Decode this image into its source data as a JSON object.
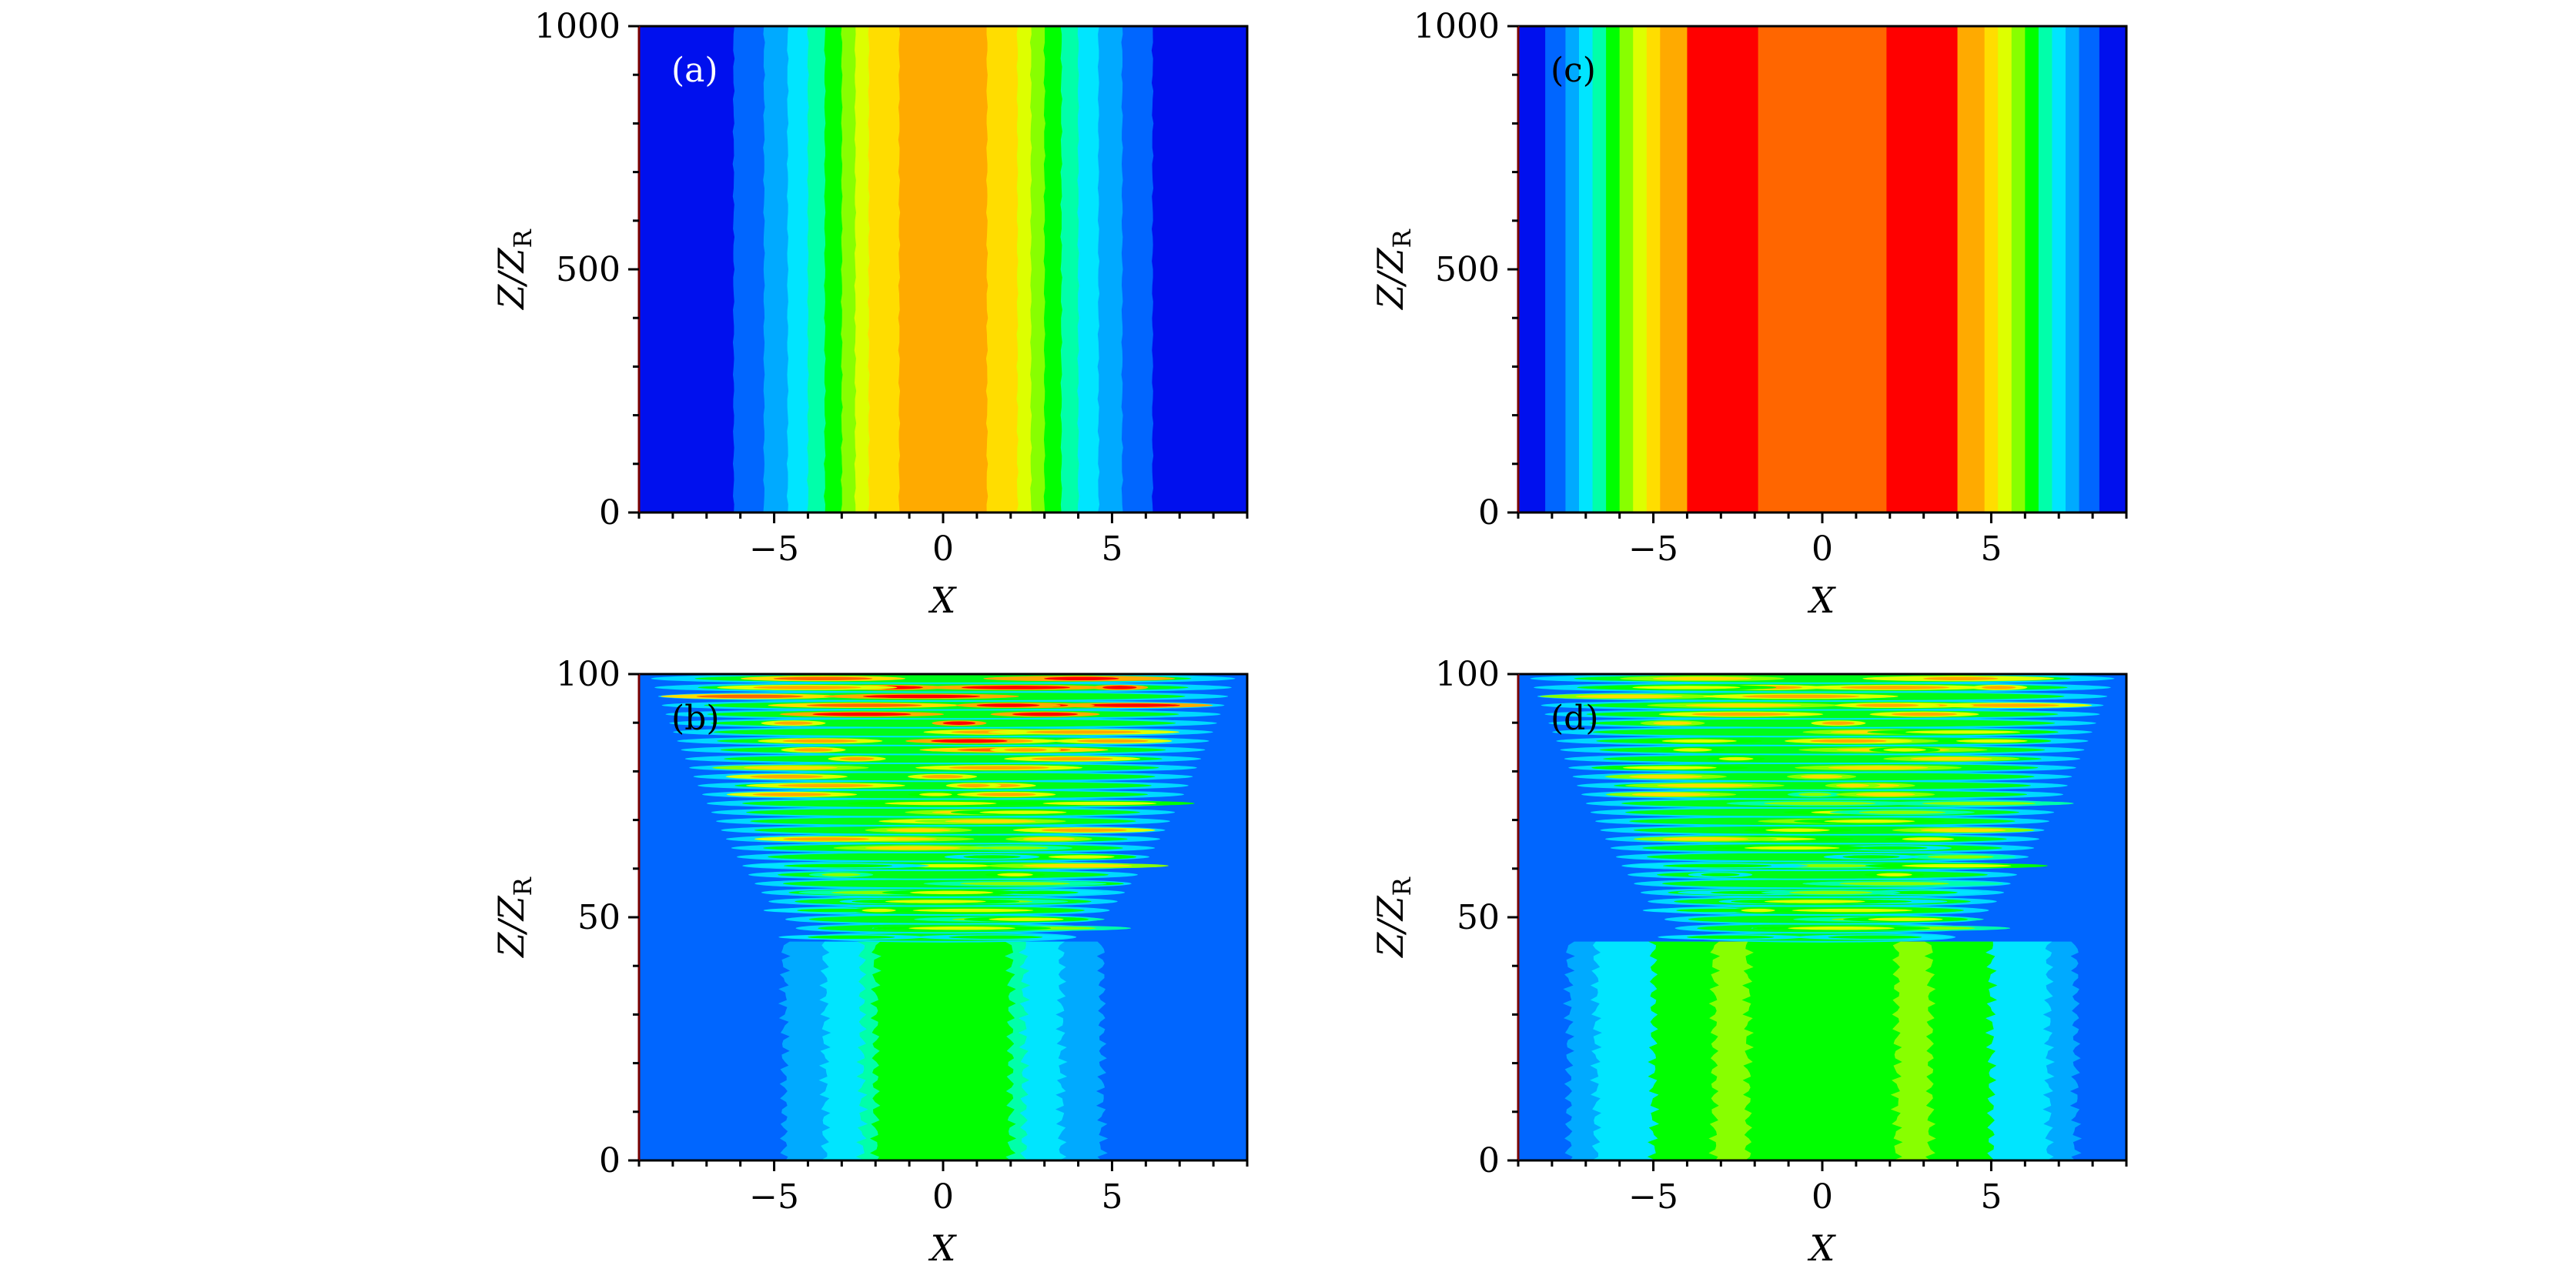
{
  "figure": {
    "colormap": [
      "#0010ee",
      "#0066ff",
      "#00aaff",
      "#00e5ff",
      "#00ffaa",
      "#00ff00",
      "#88ff00",
      "#ddff00",
      "#ffdd00",
      "#ffaa00",
      "#ff6600",
      "#ff0000"
    ],
    "background_color": "#0066ff"
  },
  "chart_data": [
    {
      "id": "a",
      "type": "heatmap",
      "panel_label": "(a)",
      "title": "",
      "xlabel": "X",
      "ylabel_main": "Z/Z",
      "ylabel_sub": "R",
      "xlim": [
        -9,
        9
      ],
      "ylim": [
        0,
        1000
      ],
      "xticks": [
        {
          "value": -5,
          "label": "−5"
        },
        {
          "value": 0,
          "label": "0"
        },
        {
          "value": 5,
          "label": "5"
        }
      ],
      "yticks": [
        {
          "value": 0,
          "label": "0"
        },
        {
          "value": 500,
          "label": "500"
        },
        {
          "value": 1000,
          "label": "1000"
        }
      ],
      "pattern": "stationary",
      "band_edges": [
        6.2,
        5.3,
        4.6,
        4.0,
        3.5,
        3.0,
        2.6,
        2.2,
        1.3
      ],
      "ripple": 0.08
    },
    {
      "id": "b",
      "type": "heatmap",
      "panel_label": "(b)",
      "title": "",
      "xlabel": "X",
      "ylabel_main": "Z/Z",
      "ylabel_sub": "R",
      "xlim": [
        -9,
        9
      ],
      "ylim": [
        0,
        100
      ],
      "xticks": [
        {
          "value": -5,
          "label": "−5"
        },
        {
          "value": 0,
          "label": "0"
        },
        {
          "value": 5,
          "label": "5"
        }
      ],
      "yticks": [
        {
          "value": 0,
          "label": "0"
        },
        {
          "value": 50,
          "label": "50"
        },
        {
          "value": 100,
          "label": "100"
        }
      ],
      "pattern": "breakup",
      "base_bands": [
        {
          "x": 4.7,
          "level": 2
        },
        {
          "x": 3.5,
          "level": 3
        },
        {
          "x": 2.4,
          "level": 4
        },
        {
          "x": 2.0,
          "level": 5
        }
      ],
      "breakup_start": 45,
      "stripe_count": 30,
      "peak_level": 11
    },
    {
      "id": "c",
      "type": "heatmap",
      "panel_label": "(c)",
      "title": "",
      "xlabel": "X",
      "ylabel_main": "Z/Z",
      "ylabel_sub": "R",
      "xlim": [
        -9,
        9
      ],
      "ylim": [
        0,
        1000
      ],
      "xticks": [
        {
          "value": -5,
          "label": "−5"
        },
        {
          "value": 0,
          "label": "0"
        },
        {
          "value": 5,
          "label": "5"
        }
      ],
      "yticks": [
        {
          "value": 0,
          "label": "0"
        },
        {
          "value": 500,
          "label": "500"
        },
        {
          "value": 1000,
          "label": "1000"
        }
      ],
      "pattern": "stationary",
      "band_edges": [
        8.2,
        7.6,
        7.2,
        6.8,
        6.4,
        6.0,
        5.6,
        5.2,
        4.8,
        4.0,
        1.9
      ],
      "center_level": 10,
      "ripple": 0
    },
    {
      "id": "d",
      "type": "heatmap",
      "panel_label": "(d)",
      "title": "",
      "xlabel": "X",
      "ylabel_main": "Z/Z",
      "ylabel_sub": "R",
      "xlim": [
        -9,
        9
      ],
      "ylim": [
        0,
        100
      ],
      "xticks": [
        {
          "value": -5,
          "label": "−5"
        },
        {
          "value": 0,
          "label": "0"
        },
        {
          "value": 5,
          "label": "5"
        }
      ],
      "yticks": [
        {
          "value": 0,
          "label": "0"
        },
        {
          "value": 50,
          "label": "50"
        },
        {
          "value": 100,
          "label": "100"
        }
      ],
      "pattern": "breakup",
      "base_bands": [
        {
          "x": 7.5,
          "level": 2
        },
        {
          "x": 6.7,
          "level": 3
        },
        {
          "x": 5.0,
          "level": 5
        },
        {
          "x": 3.2,
          "level": 6
        },
        {
          "x": 2.2,
          "level": 5
        }
      ],
      "breakup_start": 45,
      "stripe_count": 30,
      "peak_level": 9
    }
  ]
}
